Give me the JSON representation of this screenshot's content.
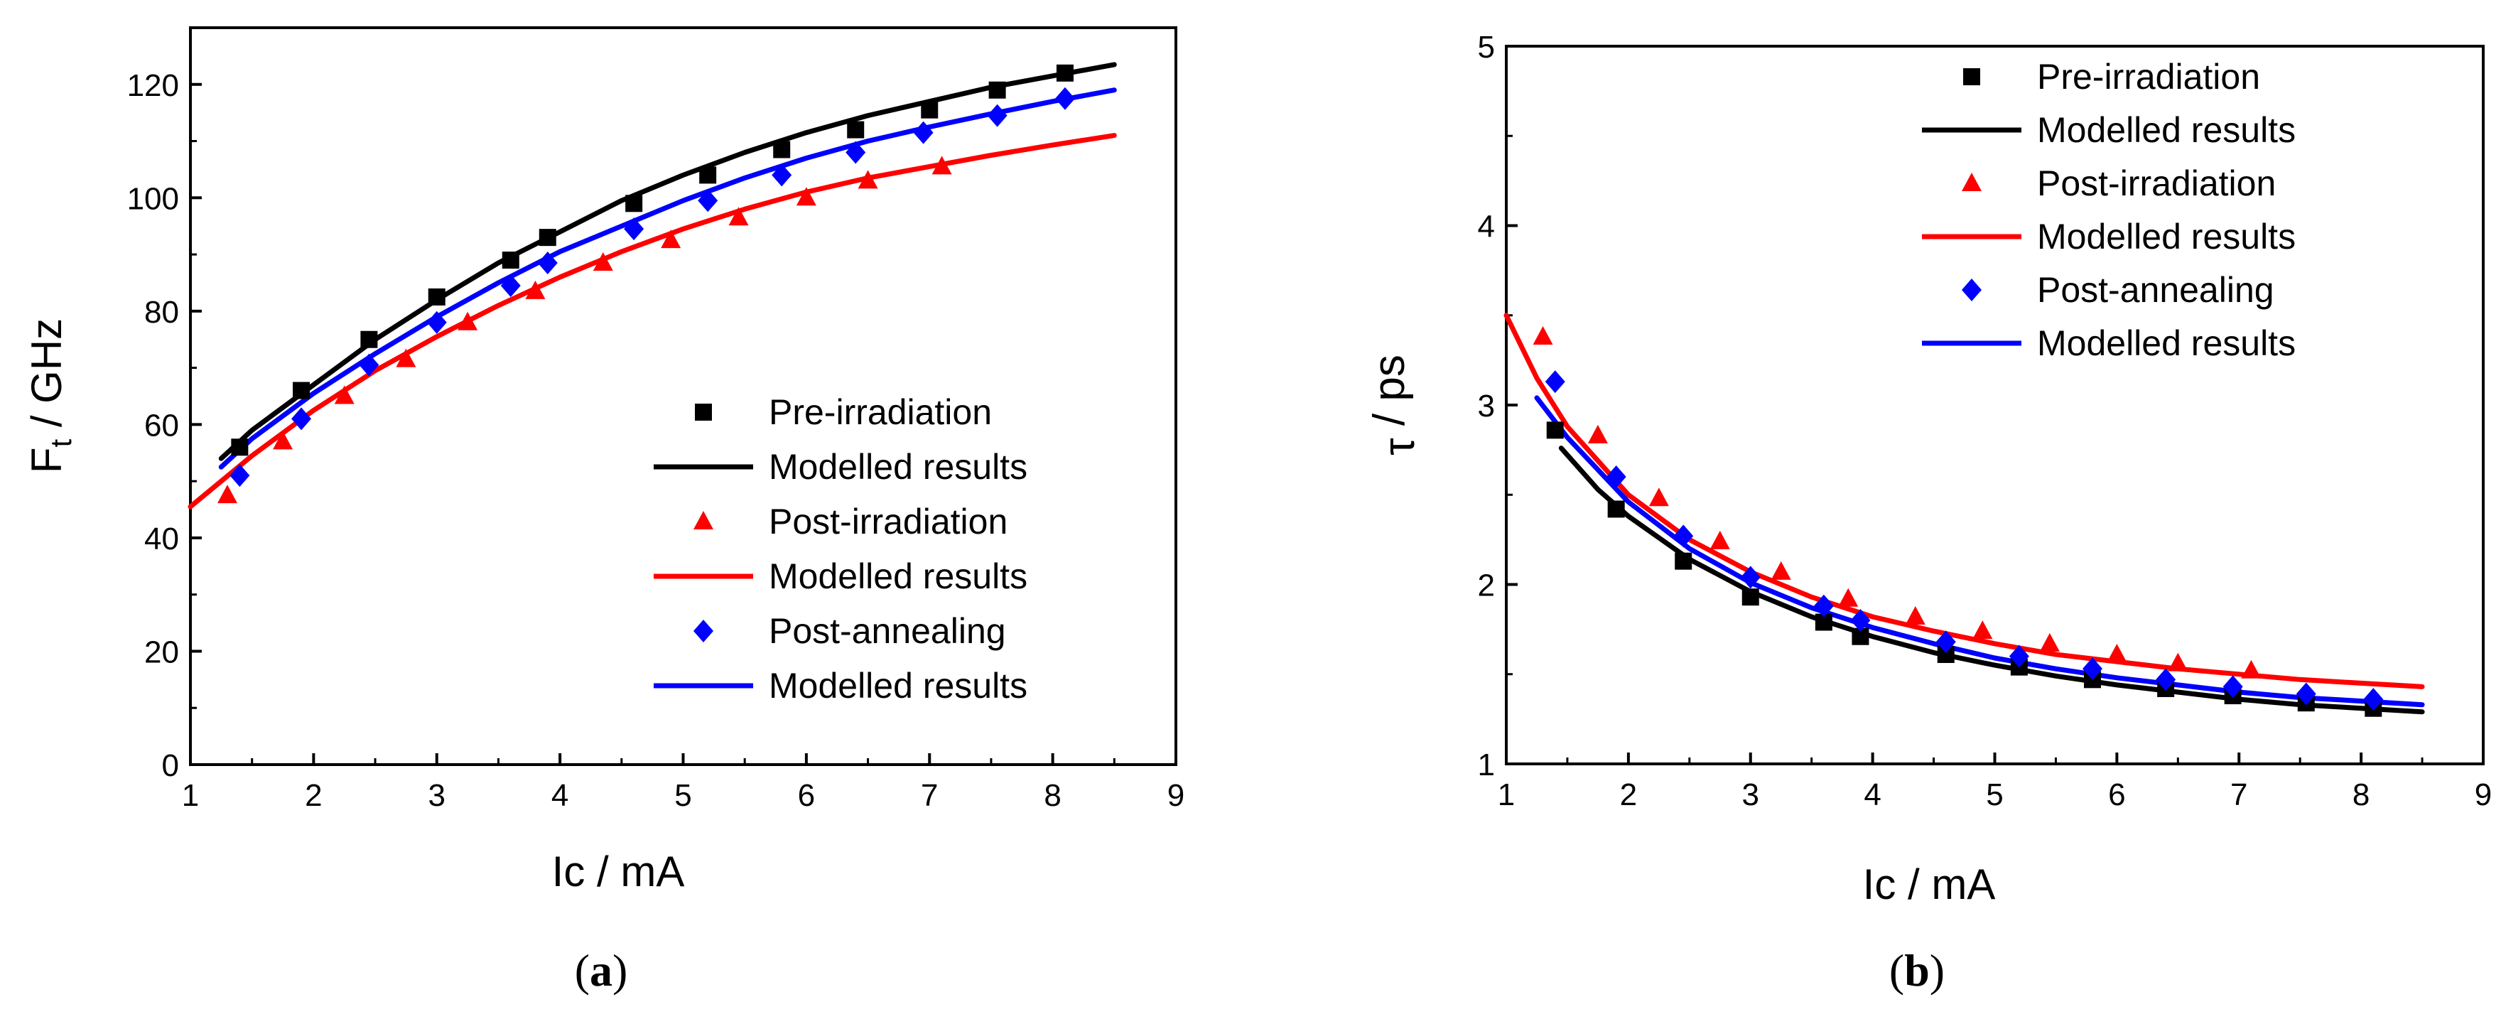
{
  "colors": {
    "pre": "#000000",
    "post_irr": "#ff0000",
    "post_ann": "#0000ff",
    "axis": "#000000"
  },
  "chart_data": [
    {
      "type": "scatter",
      "caption_open": "(",
      "caption_letter": "a",
      "caption_close": ")",
      "title": "",
      "xlabel": "Ic / mA",
      "ylabel_main": "F",
      "ylabel_sub": "t",
      "ylabel_rest": " / GHz",
      "xlim": [
        1,
        9
      ],
      "ylim": [
        0,
        130
      ],
      "xticks": [
        1,
        2,
        3,
        4,
        5,
        6,
        7,
        8,
        9
      ],
      "yticks": [
        0,
        20,
        40,
        60,
        80,
        100,
        120
      ],
      "legend_position": "lower-right",
      "series": [
        {
          "name": "Pre-irradiation",
          "kind": "points",
          "marker": "square",
          "color": "#000000",
          "x": [
            1.4,
            1.9,
            2.45,
            3.0,
            3.6,
            3.9,
            4.6,
            5.2,
            5.8,
            6.4,
            7.0,
            7.55,
            8.1
          ],
          "y": [
            56,
            66,
            75,
            82.5,
            89,
            93,
            99,
            104,
            108.5,
            112,
            115.5,
            119,
            122
          ]
        },
        {
          "name": "Modelled results",
          "kind": "line",
          "color": "#000000",
          "x": [
            1.25,
            1.5,
            2.0,
            2.5,
            3.0,
            3.5,
            4.0,
            4.5,
            5.0,
            5.5,
            6.0,
            6.5,
            7.0,
            7.5,
            8.0,
            8.5
          ],
          "y": [
            54,
            59,
            67,
            75,
            82,
            88.5,
            94,
            99.5,
            104,
            108,
            111.5,
            114.5,
            117,
            119.5,
            121.5,
            123.5
          ]
        },
        {
          "name": "Post-irradiation",
          "kind": "points",
          "marker": "triangle",
          "color": "#ff0000",
          "x": [
            1.3,
            1.75,
            2.25,
            2.75,
            3.25,
            3.8,
            4.35,
            4.9,
            5.45,
            6.0,
            6.5,
            7.1
          ],
          "y": [
            47.5,
            57,
            65,
            71.5,
            78,
            83.5,
            88.5,
            92.5,
            96.5,
            100,
            103,
            105.5
          ]
        },
        {
          "name": "Modelled results",
          "kind": "line",
          "color": "#ff0000",
          "x": [
            1.0,
            1.5,
            2.0,
            2.5,
            3.0,
            3.5,
            4.0,
            4.5,
            5.0,
            5.5,
            6.0,
            6.5,
            7.0,
            7.5,
            8.0,
            8.5
          ],
          "y": [
            45.5,
            54.5,
            62.5,
            69.5,
            75.5,
            81,
            86,
            90.5,
            94.5,
            98,
            101,
            103.5,
            105.5,
            107.5,
            109.3,
            111
          ]
        },
        {
          "name": "Post-annealing",
          "kind": "points",
          "marker": "diamond",
          "color": "#0000ff",
          "x": [
            1.4,
            1.9,
            2.45,
            3.0,
            3.6,
            3.9,
            4.6,
            5.2,
            5.8,
            6.4,
            6.95,
            7.55,
            8.1
          ],
          "y": [
            51,
            61,
            70.5,
            78,
            84.5,
            88.5,
            94.5,
            99.5,
            104,
            108,
            111.5,
            114.5,
            117.5
          ]
        },
        {
          "name": "Modelled results",
          "kind": "line",
          "color": "#0000ff",
          "x": [
            1.25,
            1.5,
            2.0,
            2.5,
            3.0,
            3.5,
            4.0,
            4.5,
            5.0,
            5.5,
            6.0,
            6.5,
            7.0,
            7.5,
            8.0,
            8.5
          ],
          "y": [
            52.5,
            57.5,
            65.5,
            72.5,
            79,
            85,
            90.5,
            95,
            99.5,
            103.5,
            107,
            110,
            112.5,
            114.8,
            117,
            119
          ]
        }
      ]
    },
    {
      "type": "scatter",
      "caption_open": "(",
      "caption_letter": "b",
      "caption_close": ")",
      "title": "",
      "xlabel": "Ic / mA",
      "ylabel_main": "τ",
      "ylabel_sub": "",
      "ylabel_rest": " / ps",
      "xlim": [
        1,
        9
      ],
      "ylim": [
        1,
        5
      ],
      "xticks": [
        1,
        2,
        3,
        4,
        5,
        6,
        7,
        8,
        9
      ],
      "yticks": [
        1,
        2,
        3,
        4,
        5
      ],
      "legend_position": "top-right",
      "series": [
        {
          "name": "Pre-irradiation",
          "kind": "points",
          "marker": "square",
          "color": "#000000",
          "x": [
            1.4,
            1.9,
            2.45,
            3.0,
            3.6,
            3.9,
            4.6,
            5.2,
            5.8,
            6.4,
            6.95,
            7.55,
            8.1
          ],
          "y": [
            2.86,
            2.42,
            2.13,
            1.93,
            1.79,
            1.71,
            1.61,
            1.54,
            1.47,
            1.42,
            1.38,
            1.34,
            1.31
          ]
        },
        {
          "name": "Modelled results",
          "kind": "line",
          "color": "#000000",
          "x": [
            1.45,
            1.75,
            2.0,
            2.5,
            3.0,
            3.5,
            4.0,
            4.5,
            5.0,
            5.5,
            6.0,
            6.5,
            7.0,
            7.5,
            8.0,
            8.5
          ],
          "y": [
            2.76,
            2.53,
            2.38,
            2.14,
            1.96,
            1.82,
            1.71,
            1.62,
            1.55,
            1.49,
            1.44,
            1.4,
            1.36,
            1.33,
            1.31,
            1.29
          ]
        },
        {
          "name": "Post-irradiation",
          "kind": "points",
          "marker": "triangle",
          "color": "#ff0000",
          "x": [
            1.3,
            1.75,
            2.25,
            2.75,
            3.25,
            3.8,
            4.35,
            4.9,
            5.45,
            6.0,
            6.5,
            7.1
          ],
          "y": [
            3.38,
            2.83,
            2.48,
            2.24,
            2.07,
            1.92,
            1.82,
            1.74,
            1.67,
            1.61,
            1.56,
            1.52
          ]
        },
        {
          "name": "Modelled results",
          "kind": "line",
          "color": "#ff0000",
          "x": [
            1.0,
            1.25,
            1.5,
            2.0,
            2.5,
            3.0,
            3.5,
            4.0,
            4.5,
            5.0,
            5.5,
            6.0,
            6.5,
            7.0,
            7.5,
            8.0,
            8.5
          ],
          "y": [
            3.5,
            3.15,
            2.88,
            2.5,
            2.25,
            2.07,
            1.93,
            1.82,
            1.74,
            1.67,
            1.61,
            1.57,
            1.53,
            1.5,
            1.47,
            1.45,
            1.43
          ]
        },
        {
          "name": "Post-annealing",
          "kind": "points",
          "marker": "diamond",
          "color": "#0000ff",
          "x": [
            1.4,
            1.9,
            2.45,
            3.0,
            3.6,
            3.9,
            4.6,
            5.2,
            5.8,
            6.4,
            6.95,
            7.55,
            8.1
          ],
          "y": [
            3.13,
            2.6,
            2.27,
            2.04,
            1.88,
            1.8,
            1.68,
            1.6,
            1.53,
            1.47,
            1.43,
            1.39,
            1.36
          ]
        },
        {
          "name": "Modelled results",
          "kind": "line",
          "color": "#0000ff",
          "x": [
            1.25,
            1.5,
            2.0,
            2.5,
            3.0,
            3.5,
            4.0,
            4.5,
            5.0,
            5.5,
            6.0,
            6.5,
            7.0,
            7.5,
            8.0,
            8.5
          ],
          "y": [
            3.04,
            2.82,
            2.46,
            2.2,
            2.01,
            1.87,
            1.76,
            1.67,
            1.59,
            1.53,
            1.48,
            1.44,
            1.4,
            1.37,
            1.35,
            1.33
          ]
        }
      ]
    }
  ]
}
